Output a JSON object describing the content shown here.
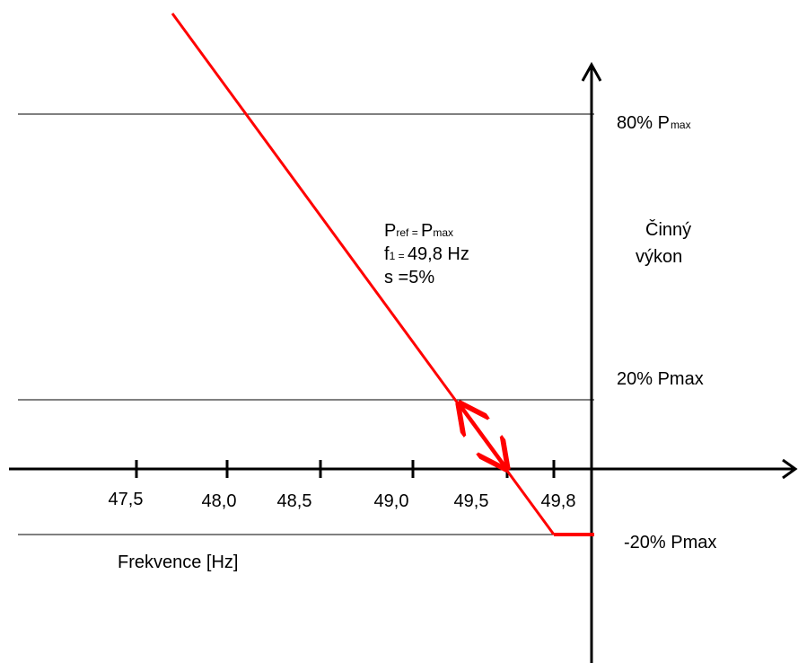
{
  "x_axis": {
    "label": "Frekvence [Hz]",
    "ticks": [
      "47,5",
      "48,0",
      "48,5",
      "49,0",
      "49,5",
      "49,8"
    ]
  },
  "y_axis": {
    "label_line1": "Činný",
    "label_line2": "výkon"
  },
  "levels": {
    "p80": {
      "main": "80% P",
      "sub": "max"
    },
    "p20": "20% Pmax",
    "m20": "-20% Pmax"
  },
  "parameters": {
    "pref": {
      "p1": "P",
      "s1": "ref",
      "eq": " = ",
      "p2": "P",
      "s2": "max"
    },
    "f1": {
      "p1": "f",
      "s1": "1",
      "eq": " = ",
      "value": "49,8 Hz"
    },
    "s": "s =5%"
  },
  "colors": {
    "curve": "#ff0000",
    "axes": "#000000",
    "reference_lines": "#000000"
  }
}
